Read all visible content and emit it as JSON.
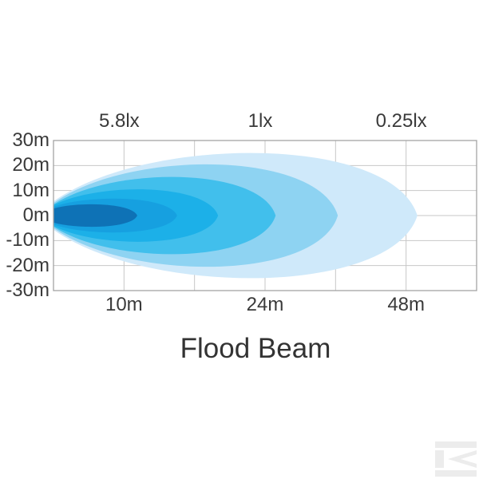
{
  "chart_data": {
    "type": "area",
    "variant": "isolux-beam-pattern",
    "title": "Flood Beam",
    "x_axis": {
      "tick_labels": [
        "10m",
        "24m",
        "48m"
      ],
      "tick_gridline_indices": [
        1,
        3,
        5
      ],
      "gridline_count": 7,
      "scale": "nonlinear-distance"
    },
    "y_axis": {
      "tick_labels": [
        "30m",
        "20m",
        "10m",
        "0m",
        "-10m",
        "-20m",
        "-30m"
      ],
      "range_m": [
        -30,
        30
      ],
      "gridline_count": 7
    },
    "lux_labels": [
      {
        "text": "5.8lx",
        "at_distance": "10m",
        "gridline_index": 1
      },
      {
        "text": "1lx",
        "at_distance": "24m",
        "gridline_index": 3
      },
      {
        "text": "0.25lx",
        "at_distance": "48m",
        "gridline_index": 5
      }
    ],
    "beam_levels": [
      {
        "color": "#cfe9fa",
        "reach_frac": 0.86,
        "approx_reach_m": 50,
        "half_height_m": 24.5,
        "start_half_height_m": 5.7
      },
      {
        "color": "#8ed3f2",
        "reach_frac": 0.672,
        "approx_reach_m": 36,
        "half_height_m": 20.0,
        "start_half_height_m": 5.0
      },
      {
        "color": "#41bfec",
        "reach_frac": 0.525,
        "approx_reach_m": 26,
        "half_height_m": 15.0,
        "start_half_height_m": 4.4
      },
      {
        "color": "#1cb0e8",
        "reach_frac": 0.389,
        "approx_reach_m": 19,
        "half_height_m": 10.0,
        "start_half_height_m": 4.1
      },
      {
        "color": "#16a0e0",
        "reach_frac": 0.292,
        "approx_reach_m": 15,
        "half_height_m": 6.3,
        "start_half_height_m": 3.5
      },
      {
        "color": "#0e72b6",
        "reach_frac": 0.198,
        "approx_reach_m": 11,
        "half_height_m": 4.1,
        "start_half_height_m": 2.8
      }
    ],
    "grid": {
      "color": "#c7c7c7",
      "border_color": "#a3a3a3",
      "background": "#ffffff"
    },
    "legend_position": "none"
  },
  "watermark": {
    "name": "k-logo",
    "color": "#ececec"
  }
}
